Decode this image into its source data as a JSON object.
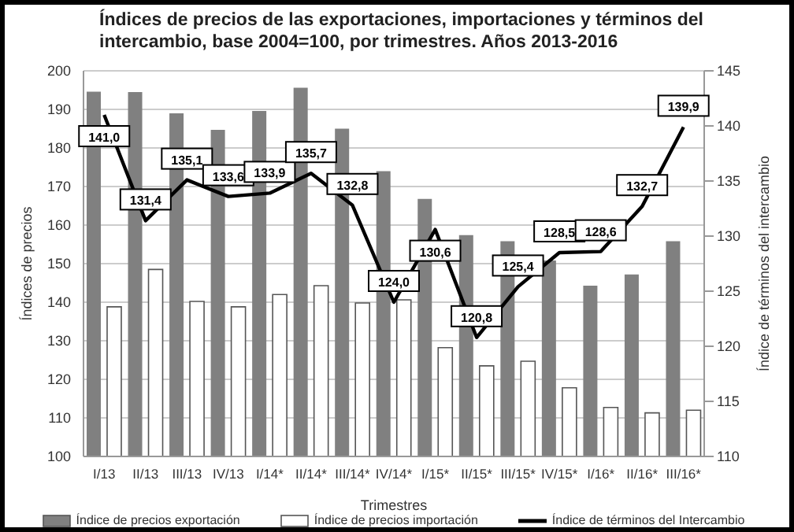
{
  "chart_data": {
    "type": "bar",
    "title": "Índices de precios de las exportaciones, importaciones y términos del intercambio, base 2004=100, por trimestres. Años 2013-2016",
    "xlabel": "Trimestres",
    "ylabel": "Índices de precios",
    "y2label": "Índice de términos del intercambio",
    "categories": [
      "I/13",
      "II/13",
      "III/13",
      "IV/13",
      "I/14*",
      "II/14*",
      "III/14*",
      "IV/14*",
      "I/15*",
      "II/15*",
      "III/15*",
      "IV/15*",
      "I/16*",
      "II/16*",
      "III/16*"
    ],
    "series": [
      {
        "name": "Índice de precios exportación",
        "color": "#808080",
        "values": [
          194.6,
          194.5,
          189,
          184.7,
          189.6,
          195.6,
          185,
          174,
          166.8,
          157.4,
          155.8,
          150.8,
          144.3,
          147.2,
          155.8
        ]
      },
      {
        "name": "Índice de precios importación",
        "color": "#ffffff",
        "values": [
          138.8,
          148.5,
          140.2,
          138.8,
          142,
          144.3,
          139.8,
          140.6,
          128.2,
          123.5,
          124.7,
          117.8,
          112.7,
          111.3,
          112
        ]
      },
      {
        "name": "Índice de términos del Intercambio",
        "type": "line",
        "axis": "y2",
        "color": "#000000",
        "values": [
          141.0,
          131.4,
          135.1,
          133.6,
          133.9,
          135.7,
          132.8,
          124.0,
          130.6,
          120.8,
          125.4,
          128.5,
          128.6,
          132.7,
          139.9
        ],
        "value_labels": [
          "141,0",
          "131,4",
          "135,1",
          "133,6",
          "133,9",
          "135,7",
          "132,8",
          "124,0",
          "130,6",
          "120,8",
          "125,4",
          "128,5",
          "128,6",
          "132,7",
          "139,9"
        ]
      }
    ],
    "ylim": [
      100,
      200
    ],
    "yticks": [
      100,
      110,
      120,
      130,
      140,
      150,
      160,
      170,
      180,
      190,
      200
    ],
    "y2lim": [
      110,
      145
    ],
    "y2ticks": [
      110,
      115,
      120,
      125,
      130,
      135,
      140,
      145
    ],
    "grid": "y",
    "legend": "bottom",
    "line_style": "solid"
  }
}
